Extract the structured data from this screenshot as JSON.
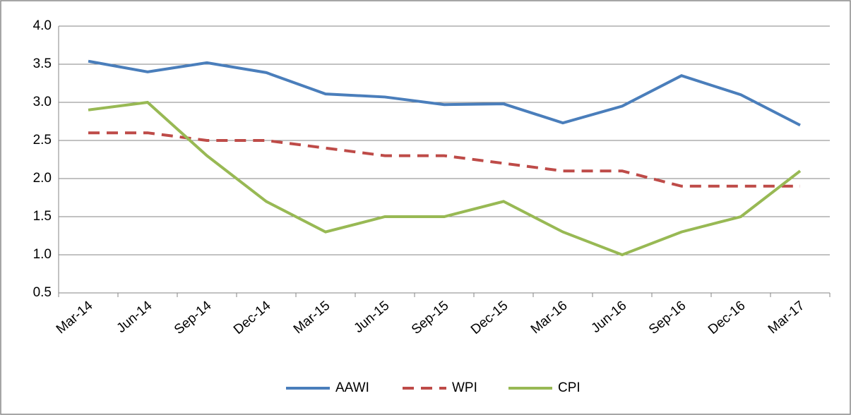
{
  "chart_data": {
    "type": "line",
    "categories": [
      "Mar-14",
      "Jun-14",
      "Sep-14",
      "Dec-14",
      "Mar-15",
      "Jun-15",
      "Sep-15",
      "Dec-15",
      "Mar-16",
      "Jun-16",
      "Sep-16",
      "Dec-16",
      "Mar-17"
    ],
    "series": [
      {
        "name": "AAWI",
        "color": "#4a7ebb",
        "style": "solid",
        "values": [
          3.54,
          3.4,
          3.52,
          3.39,
          3.11,
          3.07,
          2.97,
          2.98,
          2.73,
          2.95,
          3.35,
          3.1,
          2.7
        ]
      },
      {
        "name": "WPI",
        "color": "#be4b48",
        "style": "dashed",
        "values": [
          2.6,
          2.6,
          2.5,
          2.5,
          2.4,
          2.3,
          2.3,
          2.2,
          2.1,
          2.1,
          1.9,
          1.9,
          1.9
        ]
      },
      {
        "name": "CPI",
        "color": "#98b954",
        "style": "solid",
        "values": [
          2.9,
          3.0,
          2.3,
          1.7,
          1.3,
          1.5,
          1.5,
          1.7,
          1.3,
          1.0,
          1.3,
          1.5,
          2.1
        ]
      }
    ],
    "ylim": [
      0.5,
      4
    ],
    "yticks": [
      {
        "value": 0.5,
        "label": "0.5"
      },
      {
        "value": 1,
        "label": "1.0"
      },
      {
        "value": 1.5,
        "label": "1.5"
      },
      {
        "value": 2,
        "label": "2.0"
      },
      {
        "value": 2.5,
        "label": "2.5"
      },
      {
        "value": 3,
        "label": "3.0"
      },
      {
        "value": 3.5,
        "label": "3.5"
      },
      {
        "value": 4,
        "label": "4.0"
      }
    ],
    "grid": true,
    "legend": "bottom"
  }
}
